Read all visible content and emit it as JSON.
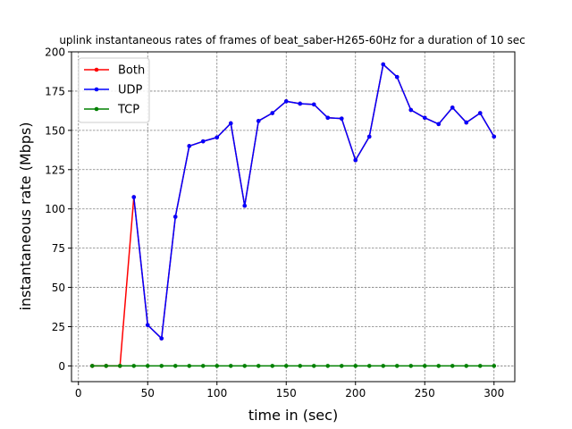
{
  "chart_data": {
    "type": "line",
    "title": "uplink instantaneous rates of frames of beat_saber-H265-60Hz for a duration of 10 sec",
    "xlabel": "time in (sec)",
    "ylabel": "instantaneous rate (Mbps)",
    "xlim": [
      -5,
      315
    ],
    "ylim": [
      -10,
      200
    ],
    "xticks": [
      0,
      50,
      100,
      150,
      200,
      250,
      300
    ],
    "yticks": [
      0,
      25,
      50,
      75,
      100,
      125,
      150,
      175,
      200
    ],
    "grid": true,
    "legend_position": "top-left",
    "series": [
      {
        "name": "Both",
        "color": "#ff0000",
        "x": [
          10,
          20,
          30,
          40,
          50,
          60,
          70,
          80,
          90,
          100,
          110,
          120,
          130,
          140,
          150,
          160,
          170,
          180,
          190,
          200,
          210,
          220,
          230,
          240,
          250,
          260,
          270,
          280,
          290,
          300
        ],
        "y": [
          0,
          0,
          0,
          107.5,
          26,
          17.5,
          95,
          140,
          143,
          145.5,
          154.5,
          102,
          156,
          161,
          168.5,
          167,
          166.5,
          158,
          157.5,
          131,
          146,
          192,
          184,
          163,
          158,
          154,
          164.5,
          155,
          161,
          146
        ]
      },
      {
        "name": "UDP",
        "color": "#0000ff",
        "x": [
          40,
          50,
          60,
          70,
          80,
          90,
          100,
          110,
          120,
          130,
          140,
          150,
          160,
          170,
          180,
          190,
          200,
          210,
          220,
          230,
          240,
          250,
          260,
          270,
          280,
          290,
          300
        ],
        "y": [
          107.5,
          26,
          17.5,
          95,
          140,
          143,
          145.5,
          154.5,
          102,
          156,
          161,
          168.5,
          167,
          166.5,
          158,
          157.5,
          131,
          146,
          192,
          184,
          163,
          158,
          154,
          164.5,
          155,
          161,
          146
        ]
      },
      {
        "name": "TCP",
        "color": "#008000",
        "x": [
          10,
          20,
          30,
          40,
          50,
          60,
          70,
          80,
          90,
          100,
          110,
          120,
          130,
          140,
          150,
          160,
          170,
          180,
          190,
          200,
          210,
          220,
          230,
          240,
          250,
          260,
          270,
          280,
          290,
          300
        ],
        "y": [
          0,
          0,
          0,
          0,
          0,
          0,
          0,
          0,
          0,
          0,
          0,
          0,
          0,
          0,
          0,
          0,
          0,
          0,
          0,
          0,
          0,
          0,
          0,
          0,
          0,
          0,
          0,
          0,
          0,
          0
        ]
      }
    ]
  }
}
